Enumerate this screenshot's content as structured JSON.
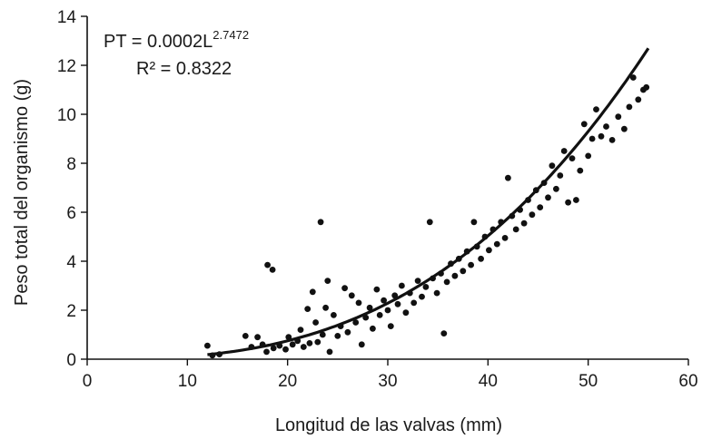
{
  "chart_data": {
    "type": "scatter",
    "title": "",
    "xlabel": "Longitud de las valvas (mm)",
    "ylabel": "Peso total del organismo (g)",
    "xlim": [
      0,
      60
    ],
    "ylim": [
      0,
      14
    ],
    "x_ticks": [
      0,
      10,
      20,
      30,
      40,
      50,
      60
    ],
    "y_ticks": [
      0,
      2,
      4,
      6,
      8,
      10,
      12,
      14
    ],
    "grid": false,
    "legend": "none",
    "marker_color": "#111111",
    "trendline": {
      "type": "power",
      "coefficient": 0.0002,
      "exponent": 2.7472,
      "x_range": [
        12,
        56
      ],
      "equation_prefix": "PT = 0.0002L",
      "equation_exponent": "2.7472",
      "r2_label": "R² = 0.8322"
    },
    "points": [
      [
        12.0,
        0.55
      ],
      [
        12.5,
        0.15
      ],
      [
        13.2,
        0.2
      ],
      [
        15.8,
        0.95
      ],
      [
        16.4,
        0.5
      ],
      [
        17.0,
        0.9
      ],
      [
        17.5,
        0.6
      ],
      [
        17.9,
        0.3
      ],
      [
        18.0,
        3.85
      ],
      [
        18.5,
        3.65
      ],
      [
        18.6,
        0.45
      ],
      [
        19.2,
        0.55
      ],
      [
        19.8,
        0.4
      ],
      [
        20.1,
        0.9
      ],
      [
        20.5,
        0.6
      ],
      [
        21.0,
        0.75
      ],
      [
        21.3,
        1.2
      ],
      [
        21.6,
        0.5
      ],
      [
        22.0,
        2.05
      ],
      [
        22.2,
        0.65
      ],
      [
        22.5,
        2.75
      ],
      [
        22.8,
        1.5
      ],
      [
        23.0,
        0.7
      ],
      [
        23.3,
        5.6
      ],
      [
        23.5,
        1.0
      ],
      [
        23.8,
        2.1
      ],
      [
        24.0,
        3.2
      ],
      [
        24.2,
        0.3
      ],
      [
        24.6,
        1.8
      ],
      [
        25.0,
        0.95
      ],
      [
        25.3,
        1.35
      ],
      [
        25.7,
        2.9
      ],
      [
        26.0,
        1.1
      ],
      [
        26.4,
        2.6
      ],
      [
        26.8,
        1.5
      ],
      [
        27.1,
        2.3
      ],
      [
        27.4,
        0.6
      ],
      [
        27.8,
        1.7
      ],
      [
        28.2,
        2.1
      ],
      [
        28.5,
        1.25
      ],
      [
        28.9,
        2.85
      ],
      [
        29.2,
        1.8
      ],
      [
        29.6,
        2.4
      ],
      [
        30.0,
        2.0
      ],
      [
        30.3,
        1.35
      ],
      [
        30.7,
        2.6
      ],
      [
        31.0,
        2.25
      ],
      [
        31.4,
        3.0
      ],
      [
        31.8,
        1.9
      ],
      [
        32.2,
        2.7
      ],
      [
        32.6,
        2.3
      ],
      [
        33.0,
        3.2
      ],
      [
        33.4,
        2.55
      ],
      [
        33.8,
        2.95
      ],
      [
        34.2,
        5.6
      ],
      [
        34.5,
        3.3
      ],
      [
        34.9,
        2.7
      ],
      [
        35.3,
        3.5
      ],
      [
        35.6,
        1.05
      ],
      [
        35.9,
        3.15
      ],
      [
        36.3,
        3.9
      ],
      [
        36.7,
        3.4
      ],
      [
        37.1,
        4.1
      ],
      [
        37.5,
        3.6
      ],
      [
        37.9,
        4.4
      ],
      [
        38.3,
        3.85
      ],
      [
        38.6,
        5.6
      ],
      [
        38.9,
        4.6
      ],
      [
        39.3,
        4.1
      ],
      [
        39.7,
        5.0
      ],
      [
        40.1,
        4.45
      ],
      [
        40.5,
        5.3
      ],
      [
        40.9,
        4.7
      ],
      [
        41.3,
        5.6
      ],
      [
        41.7,
        4.95
      ],
      [
        42.0,
        7.4
      ],
      [
        42.4,
        5.85
      ],
      [
        42.8,
        5.3
      ],
      [
        43.2,
        6.1
      ],
      [
        43.6,
        5.55
      ],
      [
        44.0,
        6.5
      ],
      [
        44.4,
        5.9
      ],
      [
        44.8,
        6.9
      ],
      [
        45.2,
        6.2
      ],
      [
        45.6,
        7.2
      ],
      [
        46.0,
        6.6
      ],
      [
        46.4,
        7.9
      ],
      [
        46.8,
        6.95
      ],
      [
        47.2,
        7.5
      ],
      [
        47.6,
        8.5
      ],
      [
        48.0,
        6.4
      ],
      [
        48.4,
        8.2
      ],
      [
        48.8,
        6.5
      ],
      [
        49.2,
        7.7
      ],
      [
        49.6,
        9.6
      ],
      [
        50.0,
        8.3
      ],
      [
        50.4,
        9.0
      ],
      [
        50.8,
        10.2
      ],
      [
        51.3,
        9.1
      ],
      [
        51.8,
        9.5
      ],
      [
        52.4,
        8.95
      ],
      [
        53.0,
        9.9
      ],
      [
        53.6,
        9.4
      ],
      [
        54.1,
        10.3
      ],
      [
        54.5,
        11.5
      ],
      [
        55.0,
        10.6
      ],
      [
        55.5,
        11.0
      ],
      [
        55.8,
        11.1
      ]
    ]
  }
}
